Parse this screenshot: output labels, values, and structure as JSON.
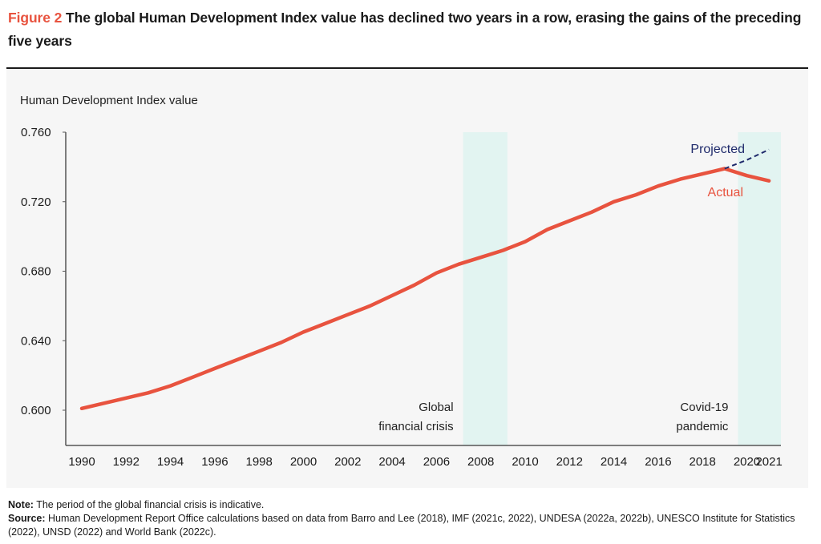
{
  "figure": {
    "label": "Figure 2",
    "title": "The global Human Development Index value has declined two years in a row, erasing the gains of the preceding five years"
  },
  "notes": {
    "note_label": "Note:",
    "note_text": "The period of the global financial crisis is indicative.",
    "source_label": "Source:",
    "source_text": "Human Development Report Office calculations based on data from Barro and Lee (2018), IMF (2021c, 2022), UNDESA (2022a, 2022b), UNESCO Institute for Statistics (2022), UNSD (2022) and World Bank (2022c)."
  },
  "colors": {
    "actual": "#e8533f",
    "projected": "#1f2a6b",
    "band": "#e2f4f1",
    "figure_label": "#e8533f"
  },
  "chart_data": {
    "type": "line",
    "title": "The global Human Development Index value has declined two years in a row, erasing the gains of the preceding five years",
    "xlabel": "",
    "ylabel": "Human Development Index value",
    "xlim": [
      1990,
      2021
    ],
    "ylim": [
      0.58,
      0.76
    ],
    "y_ticks": [
      "0.600",
      "0.640",
      "0.680",
      "0.720",
      "0.760"
    ],
    "y_tick_values": [
      0.6,
      0.64,
      0.68,
      0.72,
      0.76
    ],
    "x_ticks": [
      "1990",
      "1992",
      "1994",
      "1996",
      "1998",
      "2000",
      "2002",
      "2004",
      "2006",
      "2008",
      "2010",
      "2012",
      "2014",
      "2016",
      "2018",
      "2020",
      "2021"
    ],
    "x_tick_values": [
      1990,
      1992,
      1994,
      1996,
      1998,
      2000,
      2002,
      2004,
      2006,
      2008,
      2010,
      2012,
      2014,
      2016,
      2018,
      2020,
      2021
    ],
    "grid": false,
    "series": [
      {
        "name": "Actual",
        "style": "solid",
        "x": [
          1990,
          1991,
          1992,
          1993,
          1994,
          1995,
          1996,
          1997,
          1998,
          1999,
          2000,
          2001,
          2002,
          2003,
          2004,
          2005,
          2006,
          2007,
          2008,
          2009,
          2010,
          2011,
          2012,
          2013,
          2014,
          2015,
          2016,
          2017,
          2018,
          2019,
          2020,
          2021
        ],
        "values": [
          0.601,
          0.604,
          0.607,
          0.61,
          0.614,
          0.619,
          0.624,
          0.629,
          0.634,
          0.639,
          0.645,
          0.65,
          0.655,
          0.66,
          0.666,
          0.672,
          0.679,
          0.684,
          0.688,
          0.692,
          0.697,
          0.704,
          0.709,
          0.714,
          0.72,
          0.724,
          0.729,
          0.733,
          0.736,
          0.739,
          0.735,
          0.732
        ]
      },
      {
        "name": "Projected",
        "style": "dashed",
        "x": [
          2019,
          2020,
          2021
        ],
        "values": [
          0.739,
          0.744,
          0.75
        ]
      }
    ],
    "bands": [
      {
        "name": "Global financial crisis",
        "label_lines": [
          "Global",
          "financial crisis"
        ],
        "x_start": 2007.2,
        "x_end": 2009.2
      },
      {
        "name": "Covid-19 pandemic",
        "label_lines": [
          "Covid-19",
          "pandemic"
        ],
        "x_start": 2019.6,
        "x_end": 2021.6
      }
    ],
    "annotations": [
      {
        "text": "Projected",
        "series": "Projected"
      },
      {
        "text": "Actual",
        "series": "Actual"
      }
    ]
  }
}
